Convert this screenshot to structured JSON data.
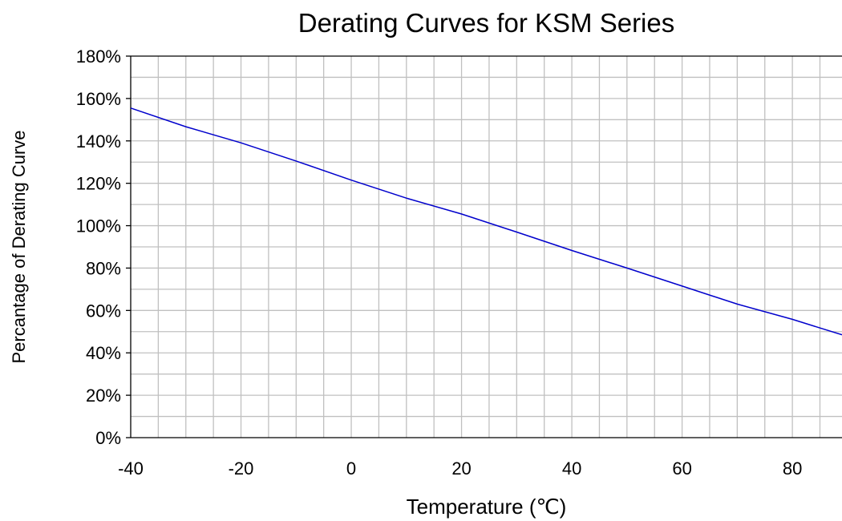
{
  "chart_data": {
    "type": "line",
    "title": "Derating Curves for KSM Series",
    "xlabel": "Temperature (℃)",
    "ylabel": "Percantage of Derating Curve",
    "xlim": [
      -40,
      89
    ],
    "ylim": [
      0,
      180
    ],
    "x_ticks": [
      "-40",
      "-20",
      "0",
      "20",
      "40",
      "60",
      "80"
    ],
    "y_ticks": [
      "0%",
      "20%",
      "40%",
      "60%",
      "80%",
      "100%",
      "120%",
      "140%",
      "160%",
      "180%"
    ],
    "grid": true,
    "legend": "none",
    "series": [
      {
        "color": "#0000cc",
        "x": [
          -40,
          -30,
          -20,
          -10,
          0,
          10,
          20,
          30,
          40,
          50,
          60,
          70,
          80,
          89
        ],
        "y": [
          155.5,
          146.7,
          139.1,
          130.5,
          121.5,
          113.0,
          105.5,
          97.0,
          88.3,
          80.0,
          71.5,
          63.0,
          55.8,
          48.5
        ]
      }
    ]
  }
}
